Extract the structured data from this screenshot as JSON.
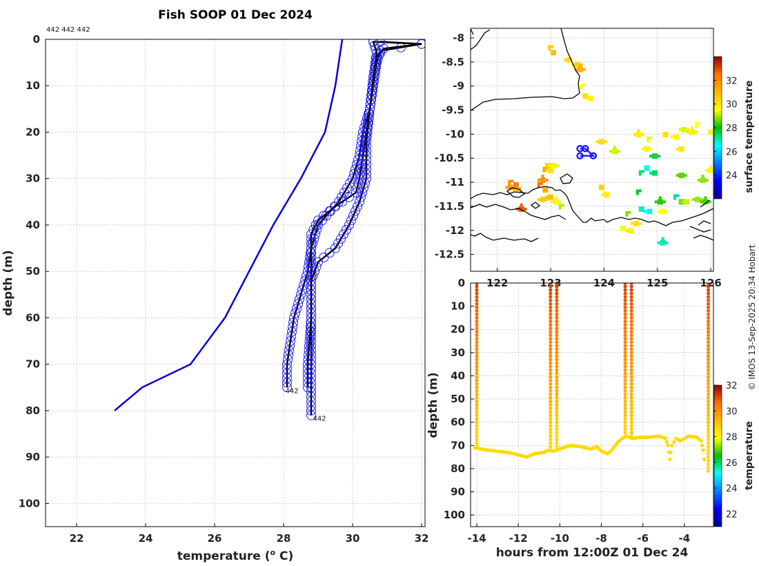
{
  "figure": {
    "title": "Fish SOOP 01 Dec 2024",
    "credit": "© IMOS 13-Sep-2025 20:34 Hobart",
    "profile_ids_label": "442 442 442"
  },
  "colors": {
    "climatology": "#0000dd",
    "observed": "#000000",
    "marker": "#2020ee",
    "grid": "#b0b0b0",
    "coast": "#000000"
  },
  "chart_data": [
    {
      "id": "temperature-profile",
      "type": "line",
      "title": "Fish SOOP 01 Dec 2024",
      "xlabel": "temperature (",
      "xlabel_sup": "o",
      "xlabel_suffix": " C)",
      "ylabel": "depth (m)",
      "xlim": [
        21.1,
        32.1
      ],
      "ylim": [
        105,
        0
      ],
      "xticks": [
        22,
        24,
        26,
        28,
        30,
        32
      ],
      "yticks": [
        0,
        10,
        20,
        30,
        40,
        50,
        60,
        70,
        80,
        90,
        100
      ],
      "grid": true,
      "series": [
        {
          "name": "climatology",
          "style": "blue-line",
          "points": [
            [
              29.7,
              0
            ],
            [
              29.6,
              5
            ],
            [
              29.5,
              10
            ],
            [
              29.2,
              20
            ],
            [
              28.5,
              30
            ],
            [
              27.7,
              40
            ],
            [
              27.0,
              50
            ],
            [
              26.3,
              60
            ],
            [
              25.3,
              70
            ],
            [
              23.9,
              75
            ],
            [
              23.1,
              80
            ]
          ]
        },
        {
          "name": "profile 1",
          "style": "black-line-circles",
          "points": [
            [
              30.6,
              0.5
            ],
            [
              32.0,
              1
            ],
            [
              30.8,
              2.5
            ],
            [
              30.7,
              5
            ],
            [
              30.6,
              10
            ],
            [
              30.5,
              15
            ],
            [
              30.3,
              20
            ],
            [
              30.2,
              25
            ],
            [
              30.0,
              30
            ],
            [
              29.6,
              35
            ],
            [
              29.0,
              40
            ],
            [
              28.8,
              45
            ],
            [
              28.7,
              50
            ],
            [
              28.5,
              55
            ],
            [
              28.3,
              60
            ],
            [
              28.2,
              65
            ],
            [
              28.1,
              70
            ],
            [
              28.1,
              75
            ]
          ]
        },
        {
          "name": "profile 2",
          "style": "black-line-circles",
          "points": [
            [
              30.8,
              0.5
            ],
            [
              32.0,
              1
            ],
            [
              30.9,
              2
            ],
            [
              30.7,
              4
            ],
            [
              30.6,
              10
            ],
            [
              30.5,
              15
            ],
            [
              30.4,
              20
            ],
            [
              30.3,
              25
            ],
            [
              30.2,
              30
            ],
            [
              30.1,
              33
            ],
            [
              29.5,
              36
            ],
            [
              29.0,
              39
            ],
            [
              28.8,
              42
            ],
            [
              28.8,
              50
            ],
            [
              28.8,
              60
            ],
            [
              28.8,
              70
            ],
            [
              28.8,
              75
            ],
            [
              28.8,
              80
            ],
            [
              28.8,
              81
            ]
          ]
        },
        {
          "name": "profile 3",
          "style": "black-line-circles",
          "points": [
            [
              30.6,
              0.5
            ],
            [
              30.7,
              3
            ],
            [
              30.6,
              8
            ],
            [
              30.5,
              15
            ],
            [
              30.4,
              22
            ],
            [
              30.4,
              30
            ],
            [
              30.2,
              35
            ],
            [
              29.9,
              40
            ],
            [
              29.5,
              45
            ],
            [
              29.0,
              48
            ],
            [
              28.8,
              52
            ],
            [
              28.8,
              60
            ],
            [
              28.7,
              70
            ],
            [
              28.7,
              75
            ]
          ]
        }
      ],
      "annotations": [
        {
          "text": "442",
          "x": 28.05,
          "y": 75.6
        },
        {
          "text": "442",
          "x": 28.85,
          "y": 81.6
        }
      ]
    },
    {
      "id": "surface-temperature-map",
      "type": "heatmap",
      "ylim": [
        -12.85,
        -7.8
      ],
      "xlim": [
        121.5,
        126.05
      ],
      "yticks": [
        -8,
        -8.5,
        -9,
        -9.5,
        -10,
        -10.5,
        -11,
        -11.5,
        -12,
        -12.5
      ],
      "xticks": [
        122,
        123,
        124,
        125,
        126
      ],
      "colorbar": {
        "label": "surface temperature",
        "range": [
          22,
          34
        ],
        "ticks": [
          24,
          26,
          28,
          30,
          32
        ]
      },
      "track_points": [
        [
          123.55,
          -10.45
        ],
        [
          123.8,
          -10.45
        ],
        [
          123.65,
          -10.3
        ],
        [
          123.55,
          -10.3
        ]
      ],
      "sst_cells": [
        [
          122.95,
          -8.15,
          30.5
        ],
        [
          123.0,
          -8.25,
          30.8
        ],
        [
          123.3,
          -8.4,
          30.2
        ],
        [
          123.45,
          -8.5,
          30.4
        ],
        [
          123.5,
          -8.6,
          31.2
        ],
        [
          123.55,
          -8.95,
          29.5
        ],
        [
          123.6,
          -9.15,
          30.1
        ],
        [
          123.7,
          -9.2,
          29.8
        ],
        [
          123.9,
          -10.1,
          30.3
        ],
        [
          124.6,
          -9.95,
          29.9
        ],
        [
          124.8,
          -10.05,
          29.4
        ],
        [
          125.1,
          -9.95,
          30.2
        ],
        [
          125.3,
          -10.0,
          29.6
        ],
        [
          125.45,
          -9.85,
          29.3
        ],
        [
          125.6,
          -9.9,
          29.9
        ],
        [
          125.7,
          -9.75,
          29.5
        ],
        [
          125.95,
          -9.9,
          29.8
        ],
        [
          125.4,
          -10.25,
          30.0
        ],
        [
          124.75,
          -10.25,
          29.7
        ],
        [
          124.15,
          -10.3,
          29.2
        ],
        [
          122.85,
          -10.68,
          31.5
        ],
        [
          122.9,
          -10.6,
          30.6
        ],
        [
          122.95,
          -10.7,
          30.1
        ],
        [
          123.0,
          -10.6,
          29.8
        ],
        [
          122.8,
          -10.9,
          31.8
        ],
        [
          122.75,
          -11.0,
          32.4
        ],
        [
          122.85,
          -11.1,
          31.3
        ],
        [
          122.95,
          -11.25,
          30.8
        ],
        [
          122.8,
          -11.3,
          30.5
        ],
        [
          123.05,
          -11.35,
          29.7
        ],
        [
          122.2,
          -10.95,
          31.8
        ],
        [
          122.3,
          -11.0,
          32.2
        ],
        [
          122.35,
          -11.1,
          30.8
        ],
        [
          122.2,
          -11.05,
          31.6
        ],
        [
          122.4,
          -11.5,
          32.8
        ],
        [
          124.65,
          -10.75,
          27.3
        ],
        [
          124.75,
          -10.65,
          26.6
        ],
        [
          124.9,
          -10.75,
          27.4
        ],
        [
          125.4,
          -10.8,
          28.5
        ],
        [
          125.8,
          -10.9,
          28.8
        ],
        [
          124.6,
          -11.15,
          27.8
        ],
        [
          124.65,
          -11.5,
          26.9
        ],
        [
          124.8,
          -11.55,
          26.4
        ],
        [
          125.05,
          -11.55,
          29.5
        ],
        [
          125.0,
          -11.35,
          28.2
        ],
        [
          125.3,
          -11.25,
          27.2
        ],
        [
          125.4,
          -11.35,
          28.6
        ],
        [
          125.5,
          -11.35,
          29.2
        ],
        [
          125.7,
          -11.3,
          28.9
        ],
        [
          125.85,
          -11.35,
          28.4
        ],
        [
          124.4,
          -11.6,
          28.7
        ],
        [
          124.3,
          -11.9,
          29.6
        ],
        [
          124.45,
          -11.95,
          29.9
        ],
        [
          124.55,
          -11.8,
          30.1
        ],
        [
          125.05,
          -12.2,
          27.0
        ],
        [
          123.15,
          -11.45,
          29.0
        ],
        [
          123.9,
          -11.05,
          30.4
        ],
        [
          124.0,
          -11.2,
          29.9
        ],
        [
          124.9,
          -10.4,
          27.6
        ],
        [
          125.95,
          -10.7,
          29.6
        ]
      ]
    },
    {
      "id": "depth-time-section",
      "type": "scatter",
      "xlabel": "hours from 12:00Z 01 Dec 24",
      "ylabel": "depth (m)",
      "xlim": [
        -14.3,
        -2.6
      ],
      "ylim": [
        105,
        0
      ],
      "xticks": [
        -14,
        -12,
        -10,
        -8,
        -6,
        -4
      ],
      "yticks": [
        0,
        10,
        20,
        30,
        40,
        50,
        60,
        70,
        80,
        90,
        100
      ],
      "colorbar": {
        "label": "temperature",
        "range": [
          21,
          32
        ],
        "ticks": [
          22,
          24,
          26,
          28,
          30,
          32
        ]
      },
      "bottom_trace": [
        [
          -14.1,
          71
        ],
        [
          -13.5,
          72
        ],
        [
          -13.0,
          72.5
        ],
        [
          -12.5,
          73
        ],
        [
          -12.0,
          74
        ],
        [
          -11.6,
          75
        ],
        [
          -11.2,
          73.5
        ],
        [
          -10.8,
          73
        ],
        [
          -10.5,
          72
        ],
        [
          -10.3,
          72.5
        ],
        [
          -10.0,
          71.5
        ],
        [
          -9.5,
          70
        ],
        [
          -9.0,
          70.5
        ],
        [
          -8.5,
          71.5
        ],
        [
          -8.2,
          70.5
        ],
        [
          -8.0,
          72.5
        ],
        [
          -7.7,
          73.5
        ],
        [
          -7.5,
          72
        ],
        [
          -7.2,
          68.5
        ],
        [
          -7.0,
          67
        ],
        [
          -6.8,
          66
        ],
        [
          -6.5,
          67
        ],
        [
          -6.2,
          66.5
        ],
        [
          -5.8,
          66.5
        ],
        [
          -5.2,
          66
        ],
        [
          -4.9,
          67
        ],
        [
          -4.8,
          70
        ],
        [
          -4.7,
          76
        ],
        [
          -4.6,
          70
        ],
        [
          -4.4,
          67
        ],
        [
          -4.2,
          68
        ],
        [
          -4.0,
          67
        ],
        [
          -3.8,
          66
        ],
        [
          -3.4,
          66.5
        ],
        [
          -3.2,
          68
        ],
        [
          -3.1,
          72
        ],
        [
          -3.0,
          80
        ]
      ],
      "profiles": [
        {
          "x": -14.0,
          "bottom": 71
        },
        {
          "x": -10.45,
          "bottom": 72
        },
        {
          "x": -10.15,
          "bottom": 73
        },
        {
          "x": -6.85,
          "bottom": 66
        },
        {
          "x": -6.55,
          "bottom": 66
        },
        {
          "x": -2.85,
          "bottom": 81
        }
      ]
    }
  ]
}
